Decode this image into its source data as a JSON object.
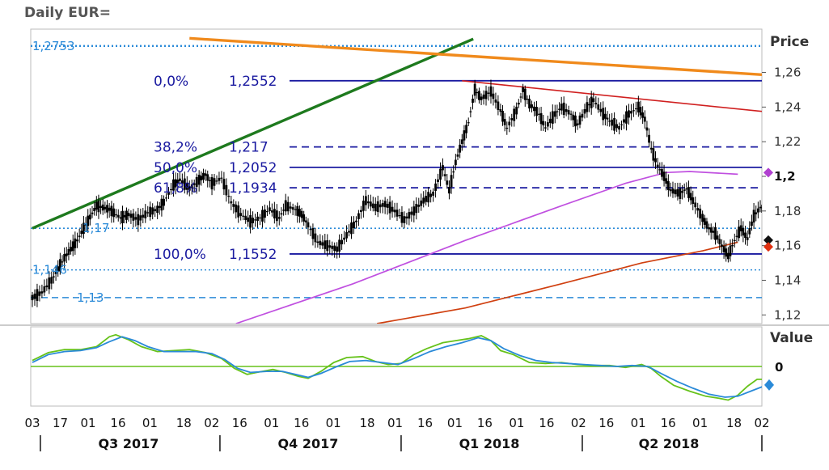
{
  "chart_data": {
    "type": "candlestick",
    "title": "Daily EUR=",
    "price_axis": {
      "label": "Price",
      "ylim": [
        1.115,
        1.285
      ],
      "ticks": [
        1.12,
        1.14,
        1.16,
        1.18,
        1.2,
        1.22,
        1.24,
        1.26
      ],
      "tick_labels": [
        "1,12",
        "1,14",
        "1,16",
        "1,18",
        "1,2",
        "1,22",
        "1,24",
        "1,26"
      ],
      "bold_tick": "1,2"
    },
    "value_axis": {
      "label": "Value",
      "zero_label": "0"
    },
    "fib_levels": [
      {
        "pct": "0,0%",
        "price": 1.2552,
        "price_label": "1,2552",
        "style": "solid"
      },
      {
        "pct": "38,2%",
        "price": 1.217,
        "price_label": "1,217",
        "style": "dashed"
      },
      {
        "pct": "50,0%",
        "price": 1.2052,
        "price_label": "1,2052",
        "style": "solid"
      },
      {
        "pct": "61,8%",
        "price": 1.1934,
        "price_label": "1,1934",
        "style": "dashed"
      },
      {
        "pct": "100,0%",
        "price": 1.1552,
        "price_label": "1,1552",
        "style": "solid"
      }
    ],
    "horizontal_levels": [
      {
        "price": 1.2753,
        "label": "1,2753",
        "style": "dotted"
      },
      {
        "price": 1.17,
        "label": "1,17",
        "style": "dotted"
      },
      {
        "price": 1.146,
        "label": "1,146",
        "style": "dotted"
      },
      {
        "price": 1.13,
        "label": "1,13",
        "style": "dashed"
      }
    ],
    "trendlines": [
      {
        "name": "green",
        "color": "#1e7a1e",
        "from": {
          "day": 0,
          "price": 1.17
        },
        "to": {
          "day": 275,
          "price": 1.2793
        }
      },
      {
        "name": "orange",
        "color": "#f08a1c",
        "from": {
          "day": 98,
          "price": 1.2797
        },
        "to": {
          "day": 455,
          "price": 1.2587
        }
      },
      {
        "name": "red",
        "color": "#d02020",
        "from": {
          "day": 268,
          "price": 1.2552
        },
        "to": {
          "day": 455,
          "price": 1.2375
        }
      }
    ],
    "moving_averages": [
      {
        "name": "ma_magenta",
        "color": "#c050e0",
        "points": [
          [
            127,
            1.115
          ],
          [
            200,
            1.138
          ],
          [
            270,
            1.163
          ],
          [
            330,
            1.183
          ],
          [
            370,
            1.196
          ],
          [
            395,
            1.2022
          ],
          [
            410,
            1.2028
          ],
          [
            440,
            1.2012
          ]
        ]
      },
      {
        "name": "ma_red",
        "color": "#d04010",
        "points": [
          [
            215,
            1.115
          ],
          [
            270,
            1.124
          ],
          [
            330,
            1.138
          ],
          [
            380,
            1.15
          ],
          [
            418,
            1.157
          ],
          [
            440,
            1.162
          ]
        ]
      }
    ],
    "price_series": [
      [
        0,
        1.13
      ],
      [
        6,
        1.133
      ],
      [
        12,
        1.14
      ],
      [
        20,
        1.153
      ],
      [
        28,
        1.163
      ],
      [
        32,
        1.17
      ],
      [
        40,
        1.183
      ],
      [
        48,
        1.181
      ],
      [
        55,
        1.176
      ],
      [
        60,
        1.178
      ],
      [
        66,
        1.175
      ],
      [
        72,
        1.179
      ],
      [
        78,
        1.181
      ],
      [
        82,
        1.185
      ],
      [
        88,
        1.195
      ],
      [
        92,
        1.198
      ],
      [
        98,
        1.193
      ],
      [
        104,
        1.198
      ],
      [
        108,
        1.201
      ],
      [
        112,
        1.196
      ],
      [
        118,
        1.199
      ],
      [
        124,
        1.185
      ],
      [
        130,
        1.178
      ],
      [
        136,
        1.174
      ],
      [
        142,
        1.176
      ],
      [
        148,
        1.181
      ],
      [
        154,
        1.176
      ],
      [
        158,
        1.183
      ],
      [
        164,
        1.181
      ],
      [
        168,
        1.178
      ],
      [
        172,
        1.172
      ],
      [
        178,
        1.162
      ],
      [
        184,
        1.16
      ],
      [
        190,
        1.158
      ],
      [
        196,
        1.166
      ],
      [
        202,
        1.174
      ],
      [
        208,
        1.186
      ],
      [
        214,
        1.182
      ],
      [
        220,
        1.184
      ],
      [
        226,
        1.18
      ],
      [
        232,
        1.175
      ],
      [
        238,
        1.18
      ],
      [
        244,
        1.186
      ],
      [
        250,
        1.19
      ],
      [
        256,
        1.205
      ],
      [
        260,
        1.192
      ],
      [
        264,
        1.208
      ],
      [
        268,
        1.22
      ],
      [
        272,
        1.231
      ],
      [
        276,
        1.25
      ],
      [
        280,
        1.245
      ],
      [
        286,
        1.249
      ],
      [
        292,
        1.238
      ],
      [
        296,
        1.228
      ],
      [
        302,
        1.238
      ],
      [
        306,
        1.25
      ],
      [
        310,
        1.242
      ],
      [
        316,
        1.236
      ],
      [
        320,
        1.228
      ],
      [
        326,
        1.236
      ],
      [
        330,
        1.24
      ],
      [
        336,
        1.236
      ],
      [
        340,
        1.23
      ],
      [
        346,
        1.24
      ],
      [
        350,
        1.244
      ],
      [
        356,
        1.236
      ],
      [
        360,
        1.232
      ],
      [
        366,
        1.228
      ],
      [
        372,
        1.236
      ],
      [
        378,
        1.24
      ],
      [
        382,
        1.233
      ],
      [
        386,
        1.216
      ],
      [
        390,
        1.206
      ],
      [
        394,
        1.2
      ],
      [
        398,
        1.192
      ],
      [
        404,
        1.19
      ],
      [
        408,
        1.193
      ],
      [
        412,
        1.186
      ],
      [
        418,
        1.176
      ],
      [
        422,
        1.17
      ],
      [
        426,
        1.167
      ],
      [
        430,
        1.16
      ],
      [
        434,
        1.154
      ],
      [
        438,
        1.163
      ],
      [
        442,
        1.17
      ],
      [
        446,
        1.164
      ],
      [
        450,
        1.177
      ],
      [
        454,
        1.182
      ],
      [
        458,
        1.18
      ],
      [
        462,
        1.17
      ],
      [
        466,
        1.162
      ],
      [
        468,
        1.158
      ]
    ],
    "last_price_markers": [
      {
        "price": 1.2012,
        "color": "#b040d0"
      },
      {
        "price": 1.1622,
        "color": "#111111"
      },
      {
        "price": 1.1612,
        "color": "#e03010"
      }
    ],
    "oscillator": {
      "range": [
        -0.4,
        0.4
      ],
      "series": [
        {
          "name": "green",
          "color": "#66c21a",
          "values": [
            [
              0,
              0.06
            ],
            [
              10,
              0.14
            ],
            [
              20,
              0.17
            ],
            [
              30,
              0.17
            ],
            [
              40,
              0.2
            ],
            [
              48,
              0.3
            ],
            [
              52,
              0.32
            ],
            [
              60,
              0.27
            ],
            [
              68,
              0.2
            ],
            [
              78,
              0.15
            ],
            [
              88,
              0.16
            ],
            [
              98,
              0.17
            ],
            [
              108,
              0.14
            ],
            [
              118,
              0.08
            ],
            [
              126,
              -0.02
            ],
            [
              134,
              -0.08
            ],
            [
              140,
              -0.06
            ],
            [
              150,
              -0.03
            ],
            [
              158,
              -0.06
            ],
            [
              166,
              -0.1
            ],
            [
              172,
              -0.12
            ],
            [
              180,
              -0.05
            ],
            [
              188,
              0.04
            ],
            [
              196,
              0.09
            ],
            [
              206,
              0.1
            ],
            [
              214,
              0.05
            ],
            [
              222,
              0.02
            ],
            [
              230,
              0.03
            ],
            [
              238,
              0.12
            ],
            [
              246,
              0.18
            ],
            [
              256,
              0.24
            ],
            [
              264,
              0.26
            ],
            [
              272,
              0.28
            ],
            [
              280,
              0.31
            ],
            [
              286,
              0.26
            ],
            [
              292,
              0.16
            ],
            [
              300,
              0.12
            ],
            [
              310,
              0.04
            ],
            [
              320,
              0.03
            ],
            [
              330,
              0.04
            ],
            [
              340,
              0.02
            ],
            [
              350,
              0.01
            ],
            [
              360,
              0.01
            ],
            [
              370,
              -0.01
            ],
            [
              380,
              0.02
            ],
            [
              386,
              -0.02
            ],
            [
              392,
              -0.1
            ],
            [
              400,
              -0.19
            ],
            [
              410,
              -0.25
            ],
            [
              420,
              -0.3
            ],
            [
              428,
              -0.32
            ],
            [
              434,
              -0.34
            ],
            [
              440,
              -0.29
            ],
            [
              446,
              -0.2
            ],
            [
              452,
              -0.13
            ],
            [
              458,
              -0.13
            ],
            [
              462,
              -0.16
            ]
          ]
        },
        {
          "name": "blue",
          "color": "#2a8ad8",
          "values": [
            [
              0,
              0.04
            ],
            [
              10,
              0.12
            ],
            [
              20,
              0.15
            ],
            [
              30,
              0.16
            ],
            [
              40,
              0.19
            ],
            [
              48,
              0.25
            ],
            [
              56,
              0.3
            ],
            [
              64,
              0.26
            ],
            [
              72,
              0.2
            ],
            [
              82,
              0.15
            ],
            [
              92,
              0.15
            ],
            [
              102,
              0.15
            ],
            [
              112,
              0.13
            ],
            [
              120,
              0.07
            ],
            [
              128,
              -0.02
            ],
            [
              136,
              -0.06
            ],
            [
              146,
              -0.05
            ],
            [
              156,
              -0.05
            ],
            [
              164,
              -0.08
            ],
            [
              172,
              -0.11
            ],
            [
              180,
              -0.07
            ],
            [
              190,
              0.0
            ],
            [
              198,
              0.05
            ],
            [
              208,
              0.06
            ],
            [
              218,
              0.04
            ],
            [
              228,
              0.02
            ],
            [
              238,
              0.08
            ],
            [
              248,
              0.15
            ],
            [
              258,
              0.2
            ],
            [
              268,
              0.24
            ],
            [
              278,
              0.29
            ],
            [
              286,
              0.26
            ],
            [
              294,
              0.18
            ],
            [
              304,
              0.11
            ],
            [
              314,
              0.06
            ],
            [
              324,
              0.04
            ],
            [
              334,
              0.03
            ],
            [
              344,
              0.02
            ],
            [
              354,
              0.01
            ],
            [
              364,
              0.0
            ],
            [
              374,
              0.01
            ],
            [
              384,
              0.0
            ],
            [
              392,
              -0.07
            ],
            [
              402,
              -0.15
            ],
            [
              412,
              -0.22
            ],
            [
              422,
              -0.28
            ],
            [
              432,
              -0.31
            ],
            [
              440,
              -0.3
            ],
            [
              448,
              -0.25
            ],
            [
              456,
              -0.2
            ],
            [
              462,
              -0.17
            ]
          ]
        }
      ],
      "last_value_marker_color": "#2a8ad8"
    },
    "x_axis": {
      "date_labels": [
        "03",
        "17",
        "01",
        "16",
        "01",
        "18",
        "02",
        "16",
        "01",
        "16",
        "01",
        "18",
        "01",
        "16",
        "01",
        "16",
        "01",
        "16",
        "02",
        "16",
        "01",
        "16",
        "01",
        "18",
        "02"
      ],
      "date_days": [
        0,
        14,
        28,
        43,
        59,
        76,
        90,
        104,
        120,
        135,
        151,
        168,
        182,
        197,
        212,
        227,
        243,
        258,
        274,
        288,
        304,
        319,
        335,
        352,
        366
      ],
      "quarters": [
        {
          "label": "Q3 2017",
          "day": 60
        },
        {
          "label": "Q4 2017",
          "day": 172
        },
        {
          "label": "Q1 2018",
          "day": 285
        },
        {
          "label": "Q2 2018",
          "day": 397
        }
      ],
      "quarter_separators": [
        5,
        117,
        230,
        343,
        455
      ]
    }
  }
}
